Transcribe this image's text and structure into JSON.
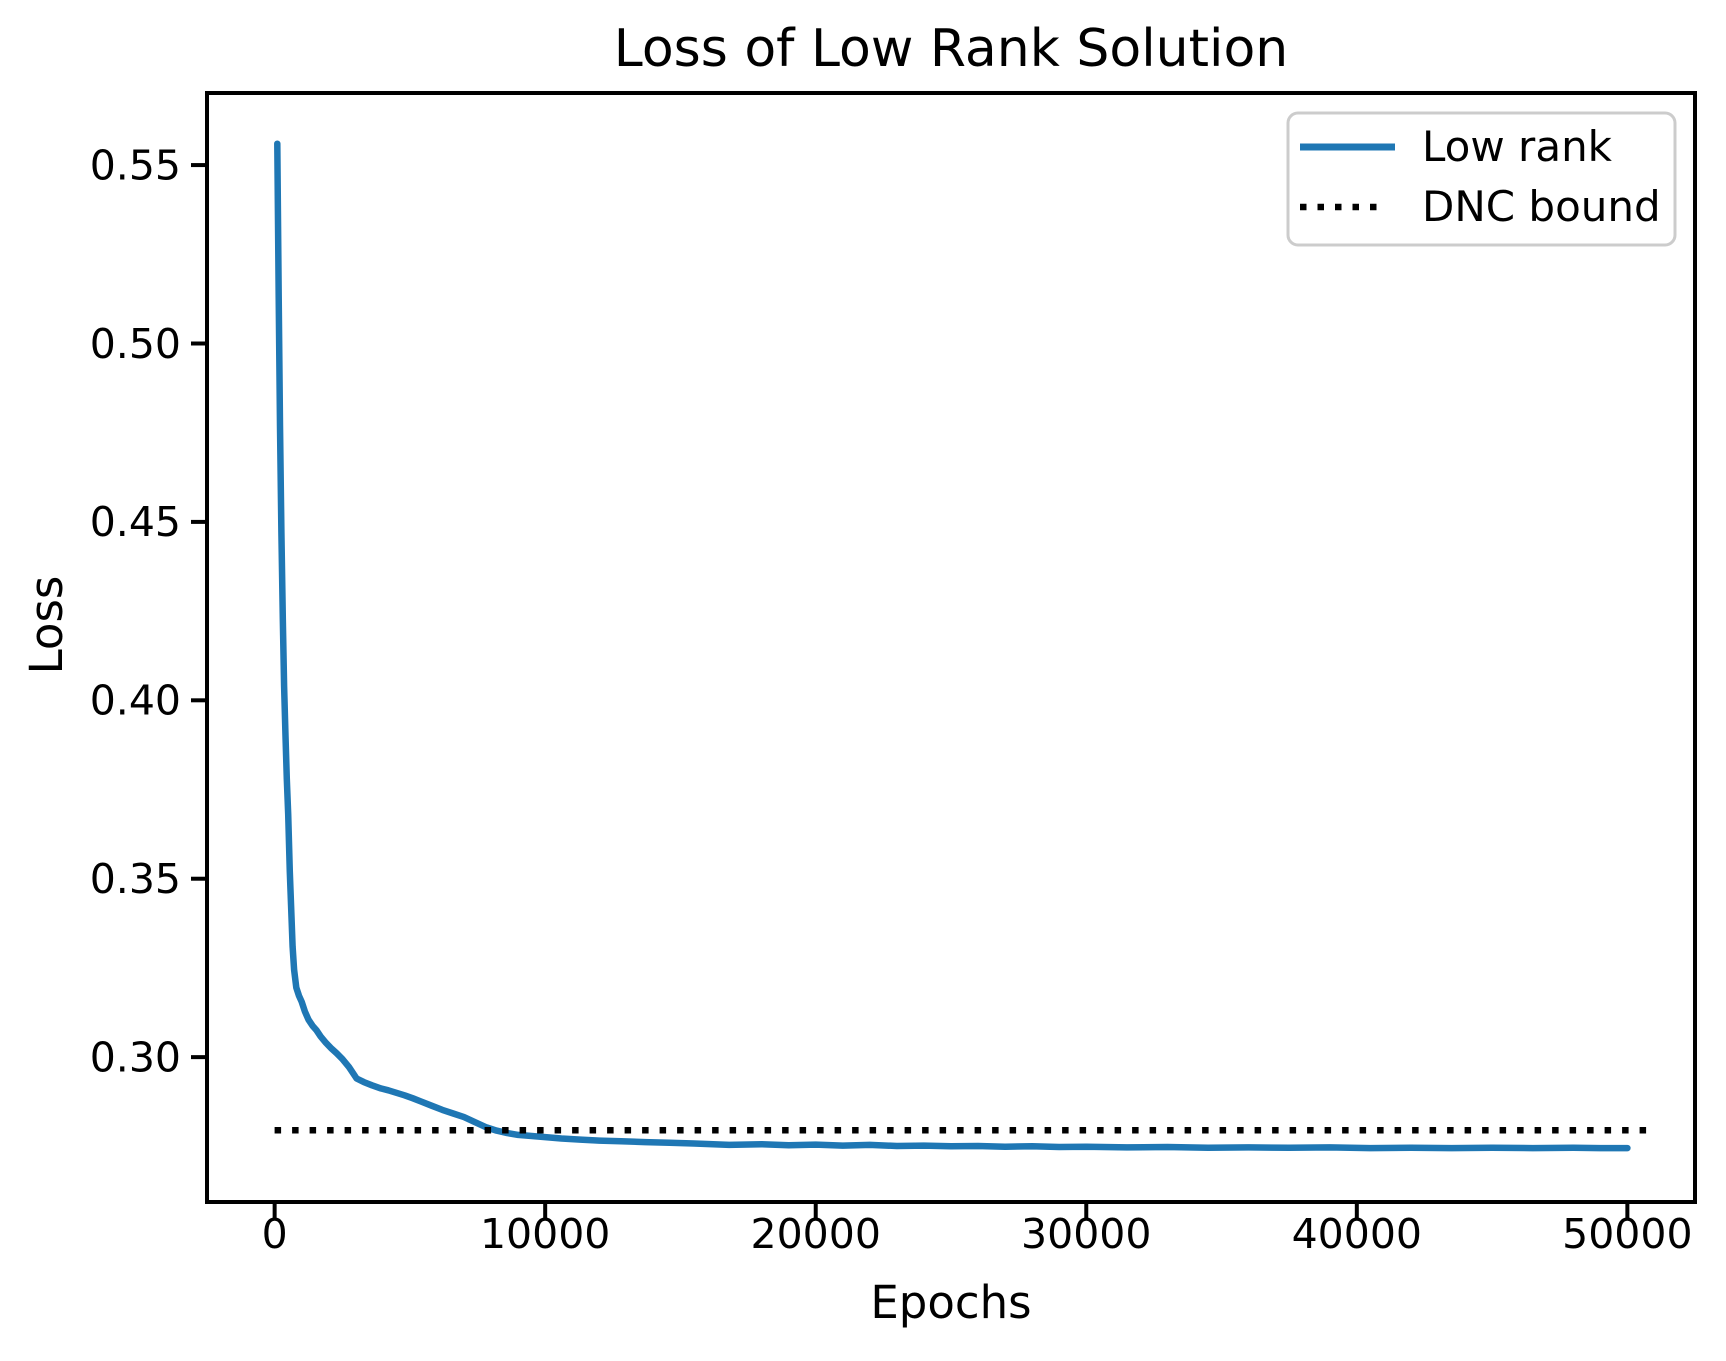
{
  "figure": {
    "title": "Loss of Low Rank Solution",
    "xlabel": "Epochs",
    "ylabel": "Loss",
    "background_color": "#ffffff",
    "spine_color": "#000000",
    "text_color": "#000000"
  },
  "legend": {
    "position": "upper right",
    "border_color": "#cccccc",
    "background_color": "#ffffff",
    "items": [
      {
        "label": "Low rank",
        "color": "#1f77b4",
        "line_style": "solid"
      },
      {
        "label": "DNC bound",
        "color": "#000000",
        "line_style": "dotted"
      }
    ]
  },
  "chart_data": {
    "type": "line",
    "title": "Loss of Low Rank Solution",
    "xlabel": "Epochs",
    "ylabel": "Loss",
    "grid": false,
    "legend_position": "upper right",
    "xlim": [
      -2500,
      52500
    ],
    "ylim": [
      0.2594,
      0.5702
    ],
    "x_ticks": [
      0,
      10000,
      20000,
      30000,
      40000,
      50000
    ],
    "x_tick_labels": [
      "0",
      "10000",
      "20000",
      "30000",
      "40000",
      "50000"
    ],
    "y_ticks": [
      0.55,
      0.5,
      0.45,
      0.4,
      0.35,
      0.3
    ],
    "y_tick_labels": [
      "0.55",
      "0.50",
      "0.45",
      "0.40",
      "0.35",
      "0.30"
    ],
    "series": [
      {
        "name": "Low rank",
        "color": "#1f77b4",
        "line_style": "solid",
        "line_width": 6.5,
        "points": [
          [
            100,
            0.556
          ],
          [
            150,
            0.513
          ],
          [
            200,
            0.477
          ],
          [
            250,
            0.447
          ],
          [
            300,
            0.423
          ],
          [
            350,
            0.404
          ],
          [
            400,
            0.39
          ],
          [
            450,
            0.378
          ],
          [
            500,
            0.368
          ],
          [
            560,
            0.352
          ],
          [
            620,
            0.34
          ],
          [
            665,
            0.331
          ],
          [
            720,
            0.3245
          ],
          [
            800,
            0.3195
          ],
          [
            900,
            0.3172
          ],
          [
            1000,
            0.3155
          ],
          [
            1120,
            0.3128
          ],
          [
            1250,
            0.3105
          ],
          [
            1400,
            0.3088
          ],
          [
            1550,
            0.3075
          ],
          [
            1700,
            0.3058
          ],
          [
            1900,
            0.304
          ],
          [
            2100,
            0.3024
          ],
          [
            2290,
            0.3011
          ],
          [
            2500,
            0.2995
          ],
          [
            2750,
            0.2972
          ],
          [
            3030,
            0.294
          ],
          [
            3300,
            0.293
          ],
          [
            3600,
            0.2921
          ],
          [
            3900,
            0.2913
          ],
          [
            4200,
            0.2907
          ],
          [
            4500,
            0.29
          ],
          [
            4800,
            0.2893
          ],
          [
            5100,
            0.2885
          ],
          [
            5400,
            0.2876
          ],
          [
            5800,
            0.2864
          ],
          [
            6200,
            0.2852
          ],
          [
            6600,
            0.2842
          ],
          [
            7000,
            0.2832
          ],
          [
            7400,
            0.2818
          ],
          [
            7830,
            0.2803
          ],
          [
            8200,
            0.2794
          ],
          [
            8600,
            0.2787
          ],
          [
            9000,
            0.2782
          ],
          [
            9500,
            0.2779
          ],
          [
            10000,
            0.2776
          ],
          [
            10600,
            0.2772
          ],
          [
            11300,
            0.2769
          ],
          [
            12000,
            0.2766
          ],
          [
            12800,
            0.2764
          ],
          [
            13700,
            0.2762
          ],
          [
            14600,
            0.276
          ],
          [
            15500,
            0.2758
          ],
          [
            16800,
            0.2754
          ],
          [
            18000,
            0.2756
          ],
          [
            19000,
            0.2753
          ],
          [
            20000,
            0.2755
          ],
          [
            21000,
            0.2752
          ],
          [
            22000,
            0.2754
          ],
          [
            23000,
            0.2751
          ],
          [
            24000,
            0.2752
          ],
          [
            25000,
            0.275
          ],
          [
            26000,
            0.2751
          ],
          [
            27000,
            0.2749
          ],
          [
            28000,
            0.275
          ],
          [
            29000,
            0.2748
          ],
          [
            30000,
            0.2749
          ],
          [
            31500,
            0.2747
          ],
          [
            33000,
            0.2748
          ],
          [
            34500,
            0.2746
          ],
          [
            36000,
            0.2747
          ],
          [
            37500,
            0.2746
          ],
          [
            39000,
            0.2747
          ],
          [
            40500,
            0.2745
          ],
          [
            42000,
            0.2746
          ],
          [
            43500,
            0.2745
          ],
          [
            45000,
            0.2746
          ],
          [
            46500,
            0.2745
          ],
          [
            48000,
            0.2746
          ],
          [
            49000,
            0.2745
          ],
          [
            50000,
            0.2745
          ]
        ]
      },
      {
        "name": "DNC bound",
        "color": "#000000",
        "line_style": "dotted",
        "line_width": 6.5,
        "value": 0.2795,
        "x_range": [
          0,
          51000
        ]
      }
    ]
  }
}
